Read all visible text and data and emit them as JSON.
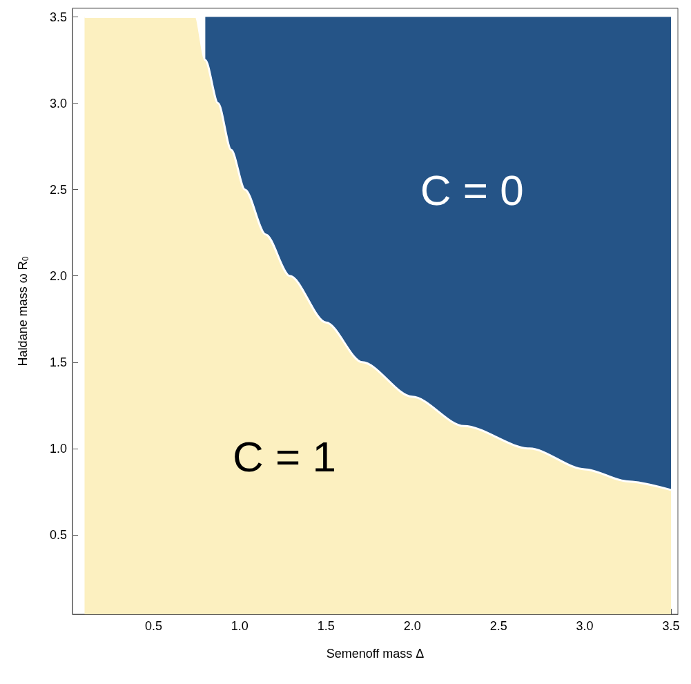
{
  "chart_data": {
    "type": "area",
    "stacked": true,
    "xlabel": "Semenoff mass Δ",
    "ylabel": "Haldane mass ω R$_{0}$",
    "x": [
      0.1,
      0.3,
      0.5,
      0.7,
      0.744,
      0.8,
      0.874,
      0.95,
      1.03,
      1.15,
      1.29,
      1.5,
      1.71,
      2.0,
      2.3,
      2.68,
      3.0,
      3.25,
      3.5
    ],
    "series": [
      {
        "name": "C = 1",
        "color": "#fcf0c0",
        "values": [
          3.5,
          3.5,
          3.5,
          3.5,
          3.5,
          3.25,
          3.0,
          2.73,
          2.5,
          2.24,
          2.0,
          1.73,
          1.5,
          1.3,
          1.13,
          1.0,
          0.88,
          0.81,
          0.76
        ]
      },
      {
        "name": "C = 0",
        "color": "#255487",
        "values": [
          null,
          null,
          null,
          null,
          null,
          0.25,
          0.5,
          0.77,
          1.0,
          1.26,
          1.5,
          1.77,
          2.0,
          2.2,
          2.37,
          2.5,
          2.62,
          2.69,
          2.74
        ]
      }
    ],
    "xlim": [
      0.03,
      3.54
    ],
    "ylim": [
      0.04,
      3.55
    ],
    "xticks": [
      0.5,
      {
        "value": 1,
        "label": "1.0"
      },
      1.5,
      {
        "value": 2,
        "label": "2.0"
      },
      2.5,
      {
        "value": 3,
        "label": "3.0"
      },
      3.5
    ],
    "yticks": [
      0.5,
      {
        "value": 1,
        "label": "1.0"
      },
      1.5,
      {
        "value": 2,
        "label": "2.0"
      },
      2.5,
      {
        "value": 3,
        "label": "3.0"
      },
      3.5
    ],
    "grid": false,
    "marker": "none"
  }
}
